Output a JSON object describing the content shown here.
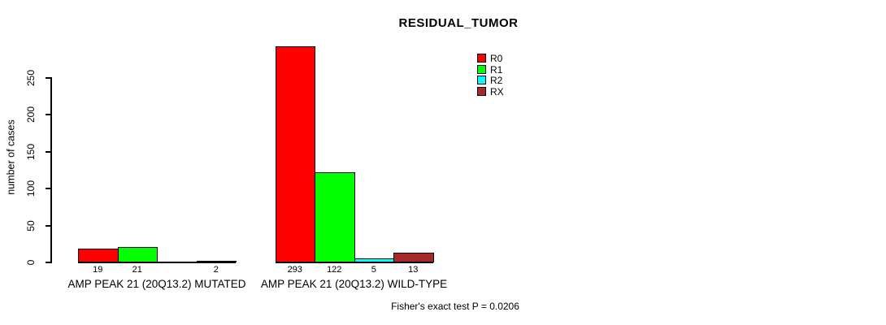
{
  "title": "RESIDUAL_TUMOR",
  "footnote": "Fisher's exact test P = 0.0206",
  "chart_data": {
    "type": "bar",
    "title": "RESIDUAL_TUMOR",
    "xlabel": "",
    "ylabel": "number of cases",
    "yticks": [
      0,
      50,
      100,
      150,
      200,
      250
    ],
    "ylim": [
      0,
      293
    ],
    "grid": false,
    "legend_position": "top-right",
    "bar_border_color": "#000000",
    "series": [
      {
        "name": "R0",
        "color": "#FF0000"
      },
      {
        "name": "R1",
        "color": "#00FF00"
      },
      {
        "name": "R2",
        "color": "#00FFFF"
      },
      {
        "name": "RX",
        "color": "#A52A2A"
      }
    ],
    "groups": [
      {
        "label": "AMP PEAK 21 (20Q13.2) MUTATED",
        "values": [
          19,
          21,
          0,
          2
        ],
        "value_labels": [
          "19",
          "21",
          "",
          "2"
        ]
      },
      {
        "label": "AMP PEAK 21 (20Q13.2) WILD-TYPE",
        "values": [
          293,
          122,
          5,
          13
        ],
        "value_labels": [
          "293",
          "122",
          "5",
          "13"
        ]
      }
    ],
    "annotation": "Fisher's exact test P = 0.0206"
  }
}
